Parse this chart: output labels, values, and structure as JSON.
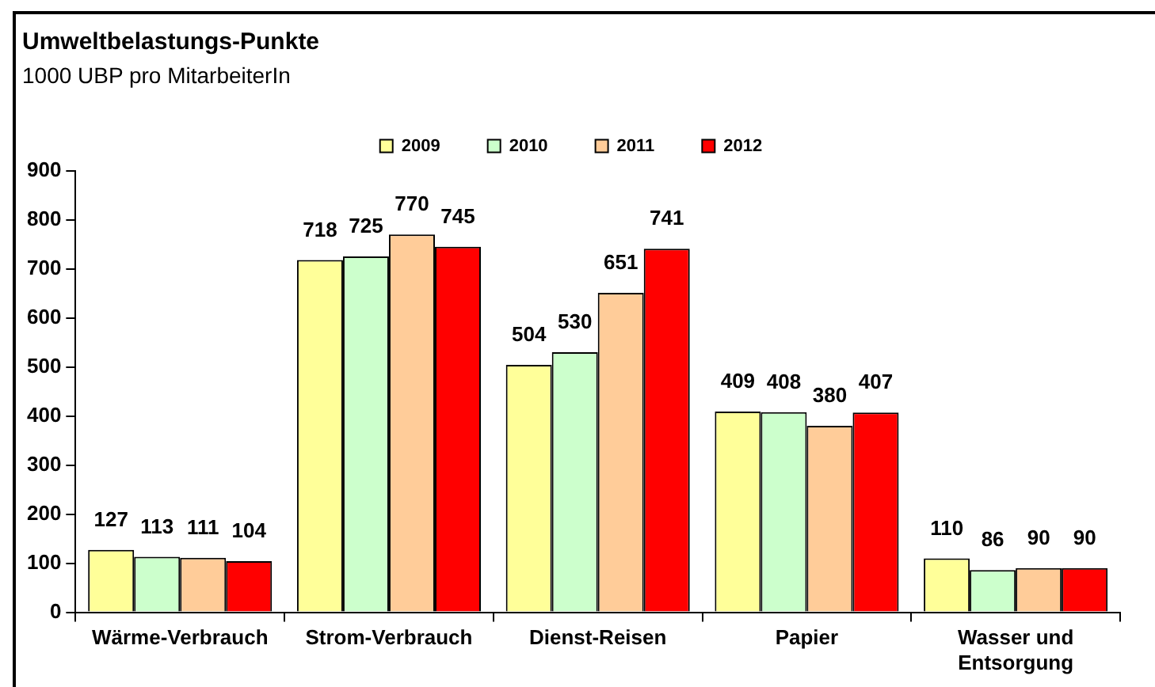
{
  "chart_data": {
    "type": "bar",
    "title": "Umweltbelastungs-Punkte",
    "subtitle": "1000 UBP pro MitarbeiterIn",
    "categories": [
      "Wärme-Verbrauch",
      "Strom-Verbrauch",
      "Dienst-Reisen",
      "Papier",
      "Wasser und Entsorgung"
    ],
    "series": [
      {
        "name": "2009",
        "color": "#ffff99",
        "values": [
          127,
          718,
          504,
          409,
          110
        ]
      },
      {
        "name": "2010",
        "color": "#ccffcc",
        "values": [
          113,
          725,
          530,
          408,
          86
        ]
      },
      {
        "name": "2011",
        "color": "#ffcc99",
        "values": [
          111,
          770,
          651,
          380,
          90
        ]
      },
      {
        "name": "2012",
        "color": "#ff0000",
        "values": [
          104,
          745,
          741,
          407,
          90
        ]
      }
    ],
    "ylim": [
      0,
      900
    ],
    "yticks": [
      0,
      100,
      200,
      300,
      400,
      500,
      600,
      700,
      800,
      900
    ],
    "grid": false,
    "legend": "top",
    "data_labels": true
  }
}
